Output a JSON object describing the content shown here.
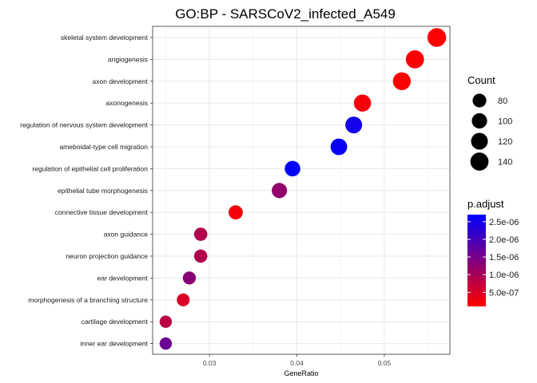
{
  "chart_data": {
    "type": "scatter",
    "title": "GO:BP - SARSCoV2_infected_A549",
    "xlabel": "GeneRatio",
    "ylabel": "",
    "xlim": [
      0.0235,
      0.0575
    ],
    "xticks": [
      0.03,
      0.04,
      0.05
    ],
    "xtick_labels": [
      "0.03",
      "0.04",
      "0.05"
    ],
    "grid": true,
    "points": [
      {
        "term": "skeletal system development",
        "gene_ratio": 0.056,
        "count": 149,
        "p_adjust": 1e-07
      },
      {
        "term": "angiogenesis",
        "gene_ratio": 0.0535,
        "count": 140,
        "p_adjust": 1.5e-07
      },
      {
        "term": "axon development",
        "gene_ratio": 0.052,
        "count": 135,
        "p_adjust": 1e-07
      },
      {
        "term": "axonogenesis",
        "gene_ratio": 0.0475,
        "count": 125,
        "p_adjust": 2e-07
      },
      {
        "term": "regulation of nervous system development",
        "gene_ratio": 0.0465,
        "count": 120,
        "p_adjust": 2.5e-06
      },
      {
        "term": "ameboidal-type cell migration",
        "gene_ratio": 0.0448,
        "count": 117,
        "p_adjust": 2.6e-06
      },
      {
        "term": "regulation of epithelial cell proliferation",
        "gene_ratio": 0.0395,
        "count": 103,
        "p_adjust": 2.7e-06
      },
      {
        "term": "epithelial tube morphogenesis",
        "gene_ratio": 0.038,
        "count": 99,
        "p_adjust": 1.2e-06
      },
      {
        "term": "connective tissue development",
        "gene_ratio": 0.033,
        "count": 86,
        "p_adjust": 2e-07
      },
      {
        "term": "axon guidance",
        "gene_ratio": 0.029,
        "count": 75,
        "p_adjust": 9e-07
      },
      {
        "term": "neuron projection guidance",
        "gene_ratio": 0.029,
        "count": 75,
        "p_adjust": 9e-07
      },
      {
        "term": "ear development",
        "gene_ratio": 0.0277,
        "count": 72,
        "p_adjust": 1.3e-06
      },
      {
        "term": "morphogenesis of a branching structure",
        "gene_ratio": 0.027,
        "count": 70,
        "p_adjust": 5e-07
      },
      {
        "term": "cartilage development",
        "gene_ratio": 0.025,
        "count": 64,
        "p_adjust": 8e-07
      },
      {
        "term": "inner ear development",
        "gene_ratio": 0.025,
        "count": 64,
        "p_adjust": 1.6e-06
      }
    ],
    "size_legend": {
      "title": "Count",
      "breaks": [
        80,
        100,
        120,
        140
      ],
      "labels": [
        "80",
        "100",
        "120",
        "140"
      ]
    },
    "color_legend": {
      "title": "p.adjust",
      "low_color": "#ff0000",
      "high_color": "#0000ff",
      "min": 1e-07,
      "max": 2.7e-06,
      "breaks": [
        5e-07,
        1e-06,
        1.5e-06,
        2e-06,
        2.5e-06
      ],
      "labels": [
        "5.0e-07",
        "1.0e-06",
        "1.5e-06",
        "2.0e-06",
        "2.5e-06"
      ]
    },
    "colors": {
      "panel_background": "#ffffff",
      "panel_border": "#333333",
      "grid_major": "#ebebeb"
    }
  }
}
